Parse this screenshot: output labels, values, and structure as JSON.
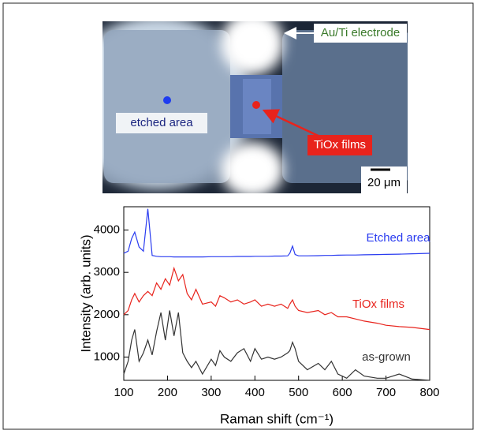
{
  "micrograph": {
    "electrode": "Au/Ti electrode",
    "etched": "etched area",
    "films": "TiOx films",
    "scale": "20 μm"
  },
  "chart_data": {
    "type": "line",
    "x_label": "Raman shift (cm⁻¹)",
    "y_label": "Intensity (arb. units)",
    "x": [
      100,
      110,
      118,
      125,
      135,
      145,
      155,
      165,
      175,
      185,
      195,
      205,
      215,
      225,
      235,
      245,
      255,
      265,
      280,
      300,
      310,
      320,
      330,
      345,
      360,
      375,
      390,
      400,
      415,
      430,
      445,
      460,
      475,
      480,
      486,
      492,
      500,
      520,
      545,
      560,
      575,
      590,
      610,
      630,
      650,
      680,
      700,
      730,
      760,
      800
    ],
    "series": [
      {
        "name": "Etched area",
        "color": "#2a3cf0",
        "values": [
          3450,
          3500,
          3800,
          3950,
          3600,
          3500,
          4500,
          3400,
          3380,
          3370,
          3370,
          3370,
          3365,
          3365,
          3365,
          3365,
          3365,
          3365,
          3365,
          3370,
          3370,
          3370,
          3370,
          3370,
          3375,
          3375,
          3375,
          3380,
          3380,
          3380,
          3385,
          3385,
          3390,
          3450,
          3620,
          3420,
          3390,
          3390,
          3395,
          3400,
          3400,
          3405,
          3410,
          3410,
          3415,
          3420,
          3425,
          3430,
          3440,
          3450
        ]
      },
      {
        "name": "TiOx films",
        "color": "#e8231c",
        "values": [
          2000,
          2100,
          2350,
          2500,
          2300,
          2450,
          2550,
          2450,
          2750,
          2600,
          2850,
          2700,
          3100,
          2800,
          2950,
          2500,
          2350,
          2600,
          2250,
          2300,
          2200,
          2450,
          2400,
          2300,
          2350,
          2250,
          2300,
          2350,
          2200,
          2250,
          2200,
          2250,
          2150,
          2250,
          2350,
          2200,
          2100,
          2050,
          2100,
          2000,
          2050,
          1950,
          1950,
          1900,
          1850,
          1800,
          1750,
          1720,
          1700,
          1650
        ]
      },
      {
        "name": "as-grown",
        "color": "#333333",
        "values": [
          600,
          900,
          1400,
          1650,
          900,
          1100,
          1400,
          1050,
          1600,
          2050,
          1400,
          2100,
          1500,
          2050,
          1100,
          900,
          750,
          900,
          600,
          950,
          800,
          1150,
          1000,
          900,
          1100,
          1200,
          900,
          1200,
          950,
          1000,
          950,
          1000,
          1100,
          1150,
          1350,
          1200,
          900,
          700,
          850,
          700,
          900,
          600,
          500,
          700,
          550,
          500,
          500,
          600,
          480,
          450
        ]
      }
    ],
    "xlim": [
      100,
      800
    ],
    "xticks": [
      100,
      200,
      300,
      400,
      500,
      600,
      700,
      800
    ],
    "ylim": [
      450,
      4550
    ],
    "yticks": [
      1000,
      2000,
      3000,
      4000
    ],
    "grid": false
  }
}
